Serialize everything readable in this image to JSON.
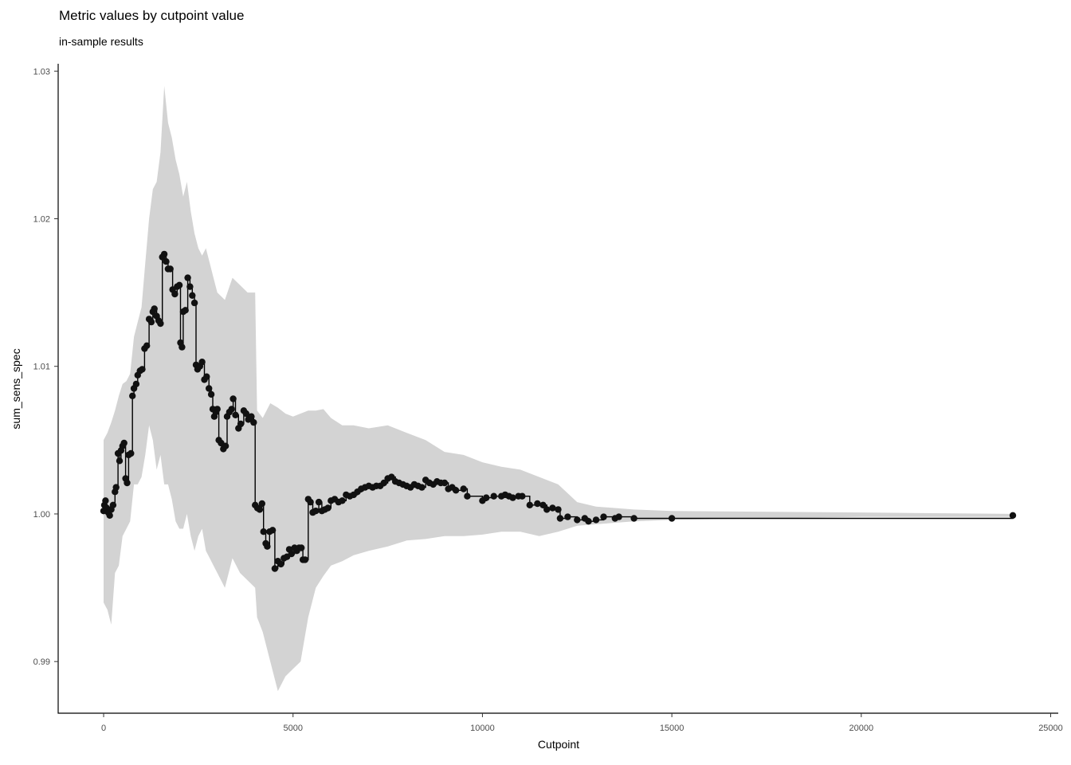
{
  "chart_data": {
    "type": "line",
    "title": "Metric values by cutpoint value",
    "subtitle": "in-sample results",
    "xlabel": "Cutpoint",
    "ylabel": "sum_sens_spec",
    "xlim": [
      -1200,
      25200
    ],
    "ylim": [
      0.9865,
      1.0305
    ],
    "xticks": [
      0,
      5000,
      10000,
      15000,
      20000,
      25000
    ],
    "yticks": [
      0.99,
      1.0,
      1.01,
      1.02,
      1.03
    ],
    "xtick_labels": [
      "0",
      "5000",
      "10000",
      "15000",
      "20000",
      "25000"
    ],
    "ytick_labels": [
      "0.99",
      "1.00",
      "1.01",
      "1.02",
      "1.03"
    ],
    "grid": false,
    "colors": {
      "line": "#000000",
      "points": "#111111",
      "band": "#d3d3d3"
    },
    "series": [
      {
        "values": [
          [
            0,
            1.0002
          ],
          [
            20,
            1.0006
          ],
          [
            50,
            1.0009
          ],
          [
            80,
            1.0004
          ],
          [
            120,
            1.0001
          ],
          [
            160,
            0.9999
          ],
          [
            200,
            1.0003
          ],
          [
            250,
            1.0006
          ],
          [
            300,
            1.0015
          ],
          [
            330,
            1.0018
          ],
          [
            380,
            1.0041
          ],
          [
            420,
            1.0036
          ],
          [
            460,
            1.0043
          ],
          [
            500,
            1.0046
          ],
          [
            540,
            1.0048
          ],
          [
            580,
            1.0024
          ],
          [
            620,
            1.0021
          ],
          [
            660,
            1.004
          ],
          [
            720,
            1.0041
          ],
          [
            760,
            1.008
          ],
          [
            800,
            1.0085
          ],
          [
            860,
            1.0088
          ],
          [
            900,
            1.0094
          ],
          [
            960,
            1.0097
          ],
          [
            1020,
            1.0098
          ],
          [
            1080,
            1.0112
          ],
          [
            1140,
            1.0114
          ],
          [
            1200,
            1.0132
          ],
          [
            1260,
            1.013
          ],
          [
            1300,
            1.0137
          ],
          [
            1340,
            1.0139
          ],
          [
            1400,
            1.0134
          ],
          [
            1450,
            1.0131
          ],
          [
            1500,
            1.0129
          ],
          [
            1550,
            1.0174
          ],
          [
            1600,
            1.0176
          ],
          [
            1650,
            1.0171
          ],
          [
            1700,
            1.0166
          ],
          [
            1760,
            1.0166
          ],
          [
            1820,
            1.0152
          ],
          [
            1880,
            1.0149
          ],
          [
            1940,
            1.0154
          ],
          [
            2000,
            1.0155
          ],
          [
            2030,
            1.0116
          ],
          [
            2070,
            1.0113
          ],
          [
            2100,
            1.0137
          ],
          [
            2160,
            1.0138
          ],
          [
            2220,
            1.016
          ],
          [
            2280,
            1.0154
          ],
          [
            2340,
            1.0148
          ],
          [
            2400,
            1.0143
          ],
          [
            2440,
            1.0101
          ],
          [
            2480,
            1.0098
          ],
          [
            2540,
            1.01
          ],
          [
            2600,
            1.0103
          ],
          [
            2660,
            1.0091
          ],
          [
            2720,
            1.0093
          ],
          [
            2780,
            1.0085
          ],
          [
            2840,
            1.0081
          ],
          [
            2880,
            1.0071
          ],
          [
            2920,
            1.0066
          ],
          [
            2960,
            1.0069
          ],
          [
            3000,
            1.0071
          ],
          [
            3040,
            1.005
          ],
          [
            3100,
            1.0048
          ],
          [
            3160,
            1.0044
          ],
          [
            3220,
            1.0046
          ],
          [
            3260,
            1.0066
          ],
          [
            3320,
            1.0069
          ],
          [
            3380,
            1.0071
          ],
          [
            3420,
            1.0078
          ],
          [
            3480,
            1.0067
          ],
          [
            3560,
            1.0058
          ],
          [
            3620,
            1.0061
          ],
          [
            3700,
            1.007
          ],
          [
            3760,
            1.0068
          ],
          [
            3820,
            1.0064
          ],
          [
            3900,
            1.0066
          ],
          [
            3960,
            1.0062
          ],
          [
            4000,
            1.0006
          ],
          [
            4060,
            1.0004
          ],
          [
            4120,
            1.0003
          ],
          [
            4180,
            1.0007
          ],
          [
            4220,
            0.9988
          ],
          [
            4280,
            0.998
          ],
          [
            4320,
            0.9978
          ],
          [
            4380,
            0.9988
          ],
          [
            4460,
            0.9989
          ],
          [
            4520,
            0.9963
          ],
          [
            4600,
            0.9968
          ],
          [
            4680,
            0.9966
          ],
          [
            4760,
            0.997
          ],
          [
            4840,
            0.9971
          ],
          [
            4900,
            0.9976
          ],
          [
            4960,
            0.9973
          ],
          [
            5040,
            0.9977
          ],
          [
            5100,
            0.9975
          ],
          [
            5160,
            0.9977
          ],
          [
            5220,
            0.9977
          ],
          [
            5260,
            0.9969
          ],
          [
            5320,
            0.9969
          ],
          [
            5400,
            1.001
          ],
          [
            5460,
            1.0008
          ],
          [
            5520,
            1.0001
          ],
          [
            5600,
            1.0002
          ],
          [
            5680,
            1.0008
          ],
          [
            5760,
            1.0002
          ],
          [
            5840,
            1.0003
          ],
          [
            5920,
            1.0004
          ],
          [
            6000,
            1.0009
          ],
          [
            6100,
            1.001
          ],
          [
            6200,
            1.0008
          ],
          [
            6300,
            1.0009
          ],
          [
            6400,
            1.0013
          ],
          [
            6500,
            1.0012
          ],
          [
            6600,
            1.0013
          ],
          [
            6700,
            1.0015
          ],
          [
            6800,
            1.0017
          ],
          [
            6900,
            1.0018
          ],
          [
            7000,
            1.0019
          ],
          [
            7100,
            1.0018
          ],
          [
            7200,
            1.0019
          ],
          [
            7300,
            1.0019
          ],
          [
            7400,
            1.0021
          ],
          [
            7500,
            1.0024
          ],
          [
            7600,
            1.0025
          ],
          [
            7700,
            1.0022
          ],
          [
            7800,
            1.0021
          ],
          [
            7900,
            1.002
          ],
          [
            8000,
            1.0019
          ],
          [
            8100,
            1.0018
          ],
          [
            8200,
            1.002
          ],
          [
            8300,
            1.0019
          ],
          [
            8400,
            1.0018
          ],
          [
            8500,
            1.0023
          ],
          [
            8600,
            1.0021
          ],
          [
            8700,
            1.002
          ],
          [
            8800,
            1.0022
          ],
          [
            8900,
            1.0021
          ],
          [
            9000,
            1.0021
          ],
          [
            9100,
            1.0017
          ],
          [
            9200,
            1.0018
          ],
          [
            9300,
            1.0016
          ],
          [
            9500,
            1.0017
          ],
          [
            9600,
            1.0012
          ],
          [
            10000,
            1.0009
          ],
          [
            10100,
            1.0011
          ],
          [
            10300,
            1.0012
          ],
          [
            10500,
            1.0012
          ],
          [
            10600,
            1.0013
          ],
          [
            10700,
            1.0012
          ],
          [
            10800,
            1.0011
          ],
          [
            10950,
            1.0012
          ],
          [
            11050,
            1.0012
          ],
          [
            11250,
            1.0006
          ],
          [
            11450,
            1.0007
          ],
          [
            11600,
            1.0006
          ],
          [
            11700,
            1.0003
          ],
          [
            11850,
            1.0004
          ],
          [
            12000,
            1.0003
          ],
          [
            12050,
            0.9997
          ],
          [
            12250,
            0.9998
          ],
          [
            12500,
            0.9996
          ],
          [
            12700,
            0.9997
          ],
          [
            12800,
            0.9995
          ],
          [
            13000,
            0.9996
          ],
          [
            13200,
            0.9998
          ],
          [
            13500,
            0.9997
          ],
          [
            13600,
            0.9998
          ],
          [
            14000,
            0.9997
          ],
          [
            15000,
            0.9997
          ],
          [
            24000,
            0.9999
          ]
        ]
      }
    ],
    "band": {
      "upper": [
        [
          0,
          1.005
        ],
        [
          100,
          1.0055
        ],
        [
          200,
          1.0062
        ],
        [
          300,
          1.007
        ],
        [
          400,
          1.008
        ],
        [
          500,
          1.0088
        ],
        [
          600,
          1.009
        ],
        [
          700,
          1.0095
        ],
        [
          800,
          1.012
        ],
        [
          900,
          1.013
        ],
        [
          1000,
          1.014
        ],
        [
          1100,
          1.017
        ],
        [
          1200,
          1.02
        ],
        [
          1300,
          1.022
        ],
        [
          1400,
          1.0225
        ],
        [
          1500,
          1.0245
        ],
        [
          1600,
          1.029
        ],
        [
          1700,
          1.0265
        ],
        [
          1800,
          1.0255
        ],
        [
          1900,
          1.024
        ],
        [
          2000,
          1.023
        ],
        [
          2100,
          1.0215
        ],
        [
          2200,
          1.0225
        ],
        [
          2300,
          1.0205
        ],
        [
          2400,
          1.019
        ],
        [
          2500,
          1.018
        ],
        [
          2600,
          1.0175
        ],
        [
          2700,
          1.018
        ],
        [
          2800,
          1.017
        ],
        [
          2900,
          1.016
        ],
        [
          3000,
          1.015
        ],
        [
          3200,
          1.0145
        ],
        [
          3400,
          1.016
        ],
        [
          3600,
          1.0155
        ],
        [
          3800,
          1.015
        ],
        [
          4000,
          1.015
        ],
        [
          4050,
          1.007
        ],
        [
          4200,
          1.0065
        ],
        [
          4400,
          1.0075
        ],
        [
          4600,
          1.0072
        ],
        [
          4800,
          1.0068
        ],
        [
          5000,
          1.0066
        ],
        [
          5200,
          1.0068
        ],
        [
          5400,
          1.007
        ],
        [
          5600,
          1.007
        ],
        [
          5800,
          1.0071
        ],
        [
          6000,
          1.0065
        ],
        [
          6300,
          1.006
        ],
        [
          6600,
          1.006
        ],
        [
          7000,
          1.0058
        ],
        [
          7500,
          1.006
        ],
        [
          8000,
          1.0055
        ],
        [
          8500,
          1.005
        ],
        [
          9000,
          1.0042
        ],
        [
          9500,
          1.004
        ],
        [
          10000,
          1.0035
        ],
        [
          10500,
          1.0032
        ],
        [
          11000,
          1.003
        ],
        [
          11500,
          1.0025
        ],
        [
          12000,
          1.002
        ],
        [
          12500,
          1.0008
        ],
        [
          13000,
          1.0005
        ],
        [
          14000,
          1.0003
        ],
        [
          15000,
          1.0002
        ],
        [
          20000,
          1.0001
        ],
        [
          24000,
          1.0
        ]
      ],
      "lower": [
        [
          0,
          0.994
        ],
        [
          100,
          0.9935
        ],
        [
          200,
          0.9925
        ],
        [
          300,
          0.996
        ],
        [
          400,
          0.9965
        ],
        [
          500,
          0.9985
        ],
        [
          600,
          0.999
        ],
        [
          700,
          0.9995
        ],
        [
          800,
          1.002
        ],
        [
          900,
          1.002
        ],
        [
          1000,
          1.0025
        ],
        [
          1100,
          1.004
        ],
        [
          1200,
          1.006
        ],
        [
          1300,
          1.005
        ],
        [
          1400,
          1.003
        ],
        [
          1500,
          1.004
        ],
        [
          1600,
          1.002
        ],
        [
          1700,
          1.002
        ],
        [
          1800,
          1.001
        ],
        [
          1900,
          0.9995
        ],
        [
          2000,
          0.999
        ],
        [
          2100,
          0.999
        ],
        [
          2200,
          1.0
        ],
        [
          2300,
          0.9985
        ],
        [
          2400,
          0.9975
        ],
        [
          2500,
          0.9985
        ],
        [
          2600,
          0.999
        ],
        [
          2700,
          0.9975
        ],
        [
          2800,
          0.997
        ],
        [
          2900,
          0.9965
        ],
        [
          3000,
          0.996
        ],
        [
          3200,
          0.995
        ],
        [
          3400,
          0.997
        ],
        [
          3600,
          0.996
        ],
        [
          3800,
          0.9955
        ],
        [
          4000,
          0.995
        ],
        [
          4050,
          0.993
        ],
        [
          4200,
          0.992
        ],
        [
          4400,
          0.99
        ],
        [
          4600,
          0.988
        ],
        [
          4800,
          0.989
        ],
        [
          5000,
          0.9895
        ],
        [
          5200,
          0.99
        ],
        [
          5400,
          0.993
        ],
        [
          5600,
          0.995
        ],
        [
          5800,
          0.9958
        ],
        [
          6000,
          0.9965
        ],
        [
          6300,
          0.9968
        ],
        [
          6600,
          0.9972
        ],
        [
          7000,
          0.9975
        ],
        [
          7500,
          0.9978
        ],
        [
          8000,
          0.9982
        ],
        [
          8500,
          0.9983
        ],
        [
          9000,
          0.9985
        ],
        [
          9500,
          0.9985
        ],
        [
          10000,
          0.9986
        ],
        [
          10500,
          0.9988
        ],
        [
          11000,
          0.9988
        ],
        [
          11500,
          0.9985
        ],
        [
          12000,
          0.9988
        ],
        [
          12500,
          0.9992
        ],
        [
          13000,
          0.9993
        ],
        [
          14000,
          0.9995
        ],
        [
          15000,
          0.9996
        ],
        [
          20000,
          0.9998
        ],
        [
          24000,
          0.9998
        ]
      ]
    }
  }
}
